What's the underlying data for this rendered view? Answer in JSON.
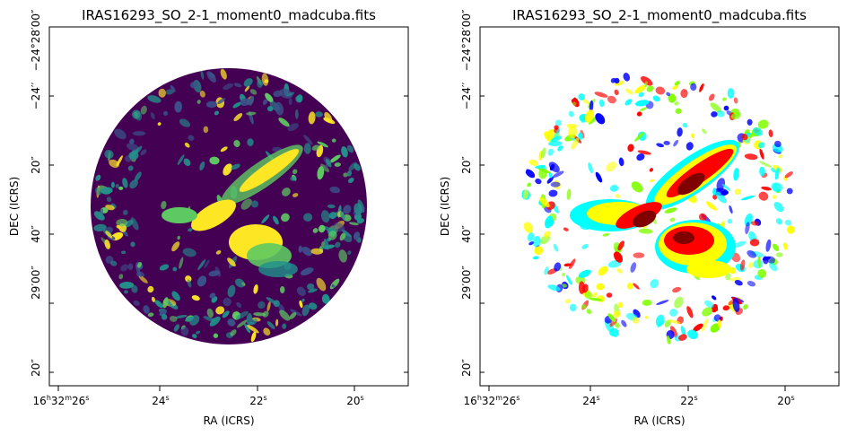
{
  "chart_data": [
    {
      "type": "heatmap",
      "title": "IRAS16293_SO_2-1_moment0_madcuba.fits",
      "xlabel": "RA (ICRS)",
      "ylabel": "DEC (ICRS)",
      "x_ticks": [
        {
          "pre": "16",
          "h": "h",
          "mid": "32",
          "m": "m",
          "post": "26",
          "s": "s"
        },
        {
          "pre": "",
          "h": "",
          "mid": "",
          "m": "",
          "post": "24",
          "s": "s"
        },
        {
          "pre": "",
          "h": "",
          "mid": "",
          "m": "",
          "post": "22",
          "s": "s"
        },
        {
          "pre": "",
          "h": "",
          "mid": "",
          "m": "",
          "post": "20",
          "s": "s"
        }
      ],
      "y_ticks": [
        "−24°28′00″",
        "−24′′",
        "20″",
        "40″",
        "29′00″",
        "20″"
      ],
      "colormap": "viridis",
      "colors": [
        "#440154",
        "#3b528b",
        "#21918c",
        "#5ec962",
        "#fde725"
      ],
      "blank_below_threshold": false
    },
    {
      "type": "heatmap",
      "title": "IRAS16293_SO_2-1_moment0_madcuba.fits",
      "xlabel": "RA (ICRS)",
      "ylabel": "DEC (ICRS)",
      "x_ticks": [
        {
          "pre": "16",
          "h": "h",
          "mid": "32",
          "m": "m",
          "post": "26",
          "s": "s"
        },
        {
          "pre": "",
          "h": "",
          "mid": "",
          "m": "",
          "post": "24",
          "s": "s"
        },
        {
          "pre": "",
          "h": "",
          "mid": "",
          "m": "",
          "post": "22",
          "s": "s"
        },
        {
          "pre": "",
          "h": "",
          "mid": "",
          "m": "",
          "post": "20",
          "s": "s"
        }
      ],
      "y_ticks": [
        "−24°28′00″",
        "−24′′",
        "20″",
        "40″",
        "29′00″",
        "20″"
      ],
      "colormap": "jet",
      "colors": [
        "#0000ff",
        "#00ffff",
        "#7fff00",
        "#ffff00",
        "#ff0000",
        "#800000"
      ],
      "blank_below_threshold": true
    }
  ]
}
